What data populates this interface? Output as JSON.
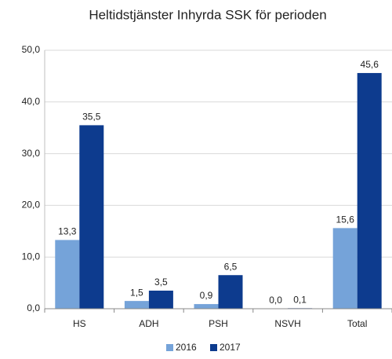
{
  "chart_data": {
    "type": "bar",
    "title": "Heltidstjänster Inhyrda SSK för perioden",
    "categories": [
      "HS",
      "ADH",
      "PSH",
      "NSVH",
      "Total"
    ],
    "series": [
      {
        "name": "2016",
        "color": "#75a3d9",
        "values": [
          13.3,
          1.5,
          0.9,
          0.0,
          15.6
        ],
        "value_labels": [
          "13,3",
          "1,5",
          "0,9",
          "0,0",
          "15,6"
        ]
      },
      {
        "name": "2017",
        "color": "#0d3b8e",
        "values": [
          35.5,
          3.5,
          6.5,
          0.1,
          45.6
        ],
        "value_labels": [
          "35,5",
          "3,5",
          "6,5",
          "0,1",
          "45,6"
        ]
      }
    ],
    "ylim": [
      0,
      50
    ],
    "yticks": [
      {
        "value": 0,
        "label": "0,0"
      },
      {
        "value": 10,
        "label": "10,0"
      },
      {
        "value": 20,
        "label": "20,0"
      },
      {
        "value": 30,
        "label": "30,0"
      },
      {
        "value": 40,
        "label": "40,0"
      },
      {
        "value": 50,
        "label": "50,0"
      }
    ],
    "grid": true
  }
}
